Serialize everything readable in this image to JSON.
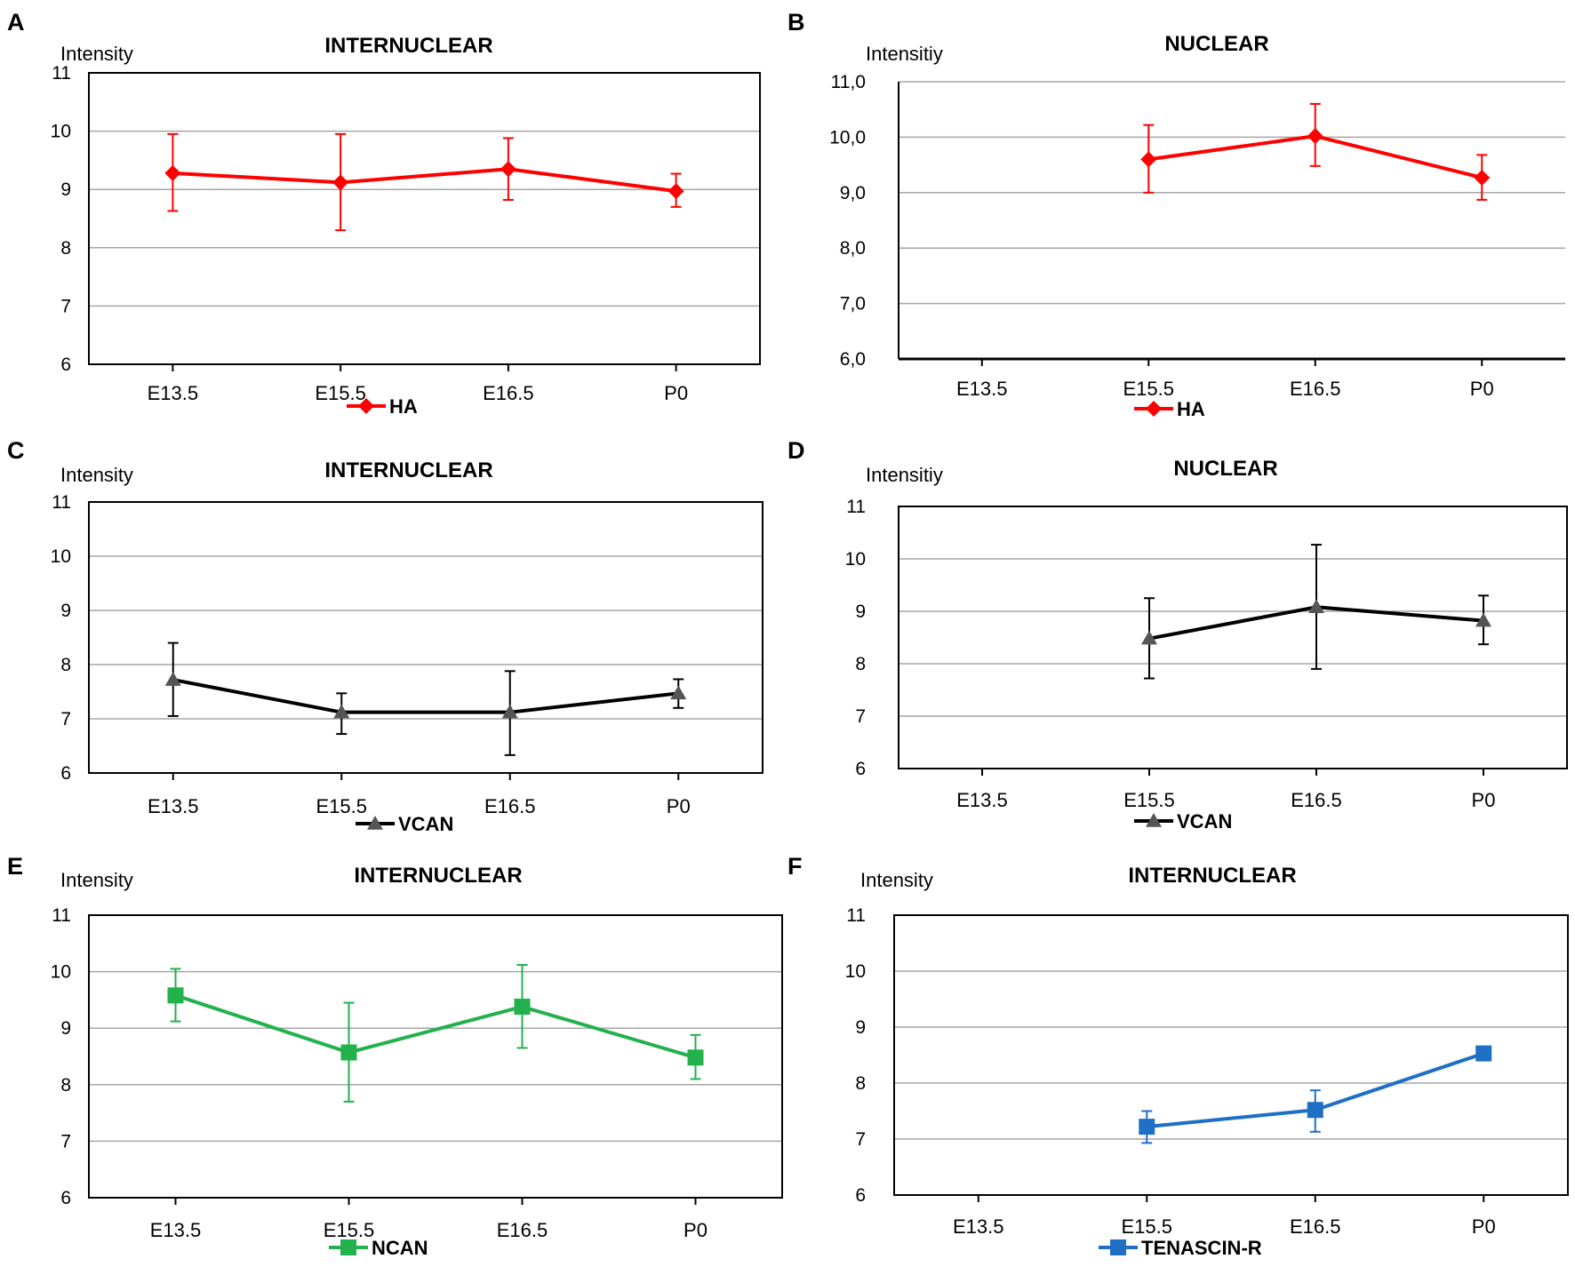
{
  "chart_data": [
    {
      "panel": "A",
      "type": "line",
      "title": "INTERNUCLEAR",
      "ylabel": "Intensity",
      "categories": [
        "E13.5",
        "E15.5",
        "E16.5",
        "P0"
      ],
      "yticks": [
        "6",
        "7",
        "8",
        "9",
        "10",
        "11"
      ],
      "ylim": [
        6,
        11
      ],
      "series": [
        {
          "name": "HA",
          "color": "#ff0000",
          "marker": "diamond",
          "values": [
            9.28,
            9.12,
            9.35,
            8.97
          ],
          "err_low": [
            8.63,
            8.3,
            8.82,
            8.7
          ],
          "err_high": [
            9.95,
            9.95,
            9.88,
            9.27
          ]
        }
      ]
    },
    {
      "panel": "B",
      "type": "line",
      "title": "NUCLEAR",
      "ylabel": "Intensitiy",
      "categories": [
        "E13.5",
        "E15.5",
        "E16.5",
        "P0"
      ],
      "yticks": [
        "6,0",
        "7,0",
        "8,0",
        "9,0",
        "10,0",
        "11,0"
      ],
      "ylim": [
        6,
        11
      ],
      "series": [
        {
          "name": "HA",
          "color": "#ff0000",
          "marker": "diamond",
          "values": [
            null,
            9.6,
            10.02,
            9.27
          ],
          "err_low": [
            null,
            9.0,
            9.48,
            8.87
          ],
          "err_high": [
            null,
            10.22,
            10.6,
            9.68
          ]
        }
      ]
    },
    {
      "panel": "C",
      "type": "line",
      "title": "INTERNUCLEAR",
      "ylabel": "Intensity",
      "categories": [
        "E13.5",
        "E15.5",
        "E16.5",
        "P0"
      ],
      "yticks": [
        "6",
        "7",
        "8",
        "9",
        "10",
        "11"
      ],
      "ylim": [
        6,
        11
      ],
      "series": [
        {
          "name": "VCAN",
          "color": "#000000",
          "marker_color": "#555555",
          "marker": "triangle",
          "values": [
            7.72,
            7.12,
            7.12,
            7.47
          ],
          "err_low": [
            7.05,
            6.72,
            6.33,
            7.2
          ],
          "err_high": [
            8.4,
            7.47,
            7.88,
            7.73
          ]
        }
      ]
    },
    {
      "panel": "D",
      "type": "line",
      "title": "NUCLEAR",
      "ylabel": "Intensitiy",
      "categories": [
        "E13.5",
        "E15.5",
        "E16.5",
        "P0"
      ],
      "yticks": [
        "6",
        "7",
        "8",
        "9",
        "10",
        "11"
      ],
      "ylim": [
        6,
        11
      ],
      "series": [
        {
          "name": "VCAN",
          "color": "#000000",
          "marker_color": "#555555",
          "marker": "triangle",
          "values": [
            null,
            8.48,
            9.08,
            8.82
          ],
          "err_low": [
            null,
            7.72,
            7.9,
            8.37
          ],
          "err_high": [
            null,
            9.25,
            10.27,
            9.3
          ]
        }
      ]
    },
    {
      "panel": "E",
      "type": "line",
      "title": "INTERNUCLEAR",
      "ylabel": "Intensity",
      "categories": [
        "E13.5",
        "E15.5",
        "E16.5",
        "P0"
      ],
      "yticks": [
        "6",
        "7",
        "8",
        "9",
        "10",
        "11"
      ],
      "ylim": [
        6,
        11
      ],
      "series": [
        {
          "name": "NCAN",
          "color": "#22b14c",
          "marker": "square",
          "values": [
            9.58,
            8.57,
            9.38,
            8.48
          ],
          "err_low": [
            9.12,
            7.7,
            8.65,
            8.1
          ],
          "err_high": [
            10.05,
            9.45,
            10.12,
            8.88
          ]
        }
      ]
    },
    {
      "panel": "F",
      "type": "line",
      "title": "INTERNUCLEAR",
      "ylabel": "Intensity",
      "categories": [
        "E13.5",
        "E15.5",
        "E16.5",
        "P0"
      ],
      "yticks": [
        "6",
        "7",
        "8",
        "9",
        "10",
        "11"
      ],
      "ylim": [
        6,
        11
      ],
      "series": [
        {
          "name": "TENASCIN-R",
          "color": "#1f6fc4",
          "marker": "square",
          "values": [
            null,
            7.22,
            7.52,
            8.53
          ],
          "err_low": [
            null,
            6.93,
            7.13,
            null
          ],
          "err_high": [
            null,
            7.5,
            7.87,
            null
          ]
        }
      ]
    }
  ]
}
